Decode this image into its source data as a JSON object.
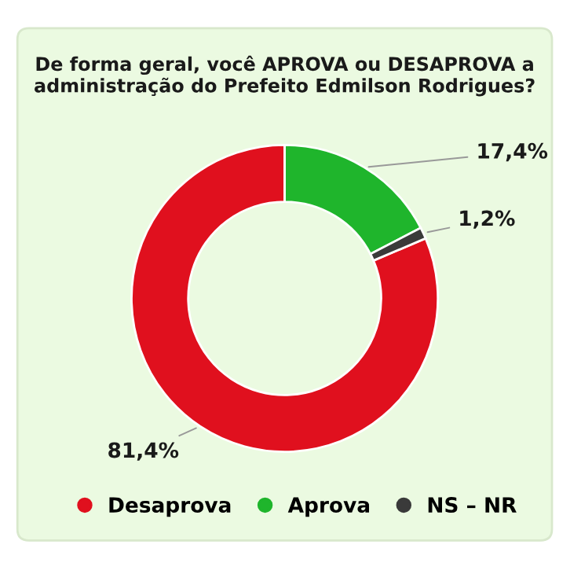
{
  "chart_data": {
    "type": "donut",
    "title": "De forma geral, você APROVA ou DESAPROVA a administração do Prefeito Edmilson Rodrigues?",
    "categories": [
      "Desaprova",
      "Aprova",
      "NS – NR"
    ],
    "values": [
      81.4,
      17.4,
      1.2
    ],
    "value_labels": [
      "81,4%",
      "17,4%",
      "1,2%"
    ],
    "colors": [
      "#e0101e",
      "#1fb52c",
      "#3a3a3a"
    ],
    "legend": "bottom"
  }
}
